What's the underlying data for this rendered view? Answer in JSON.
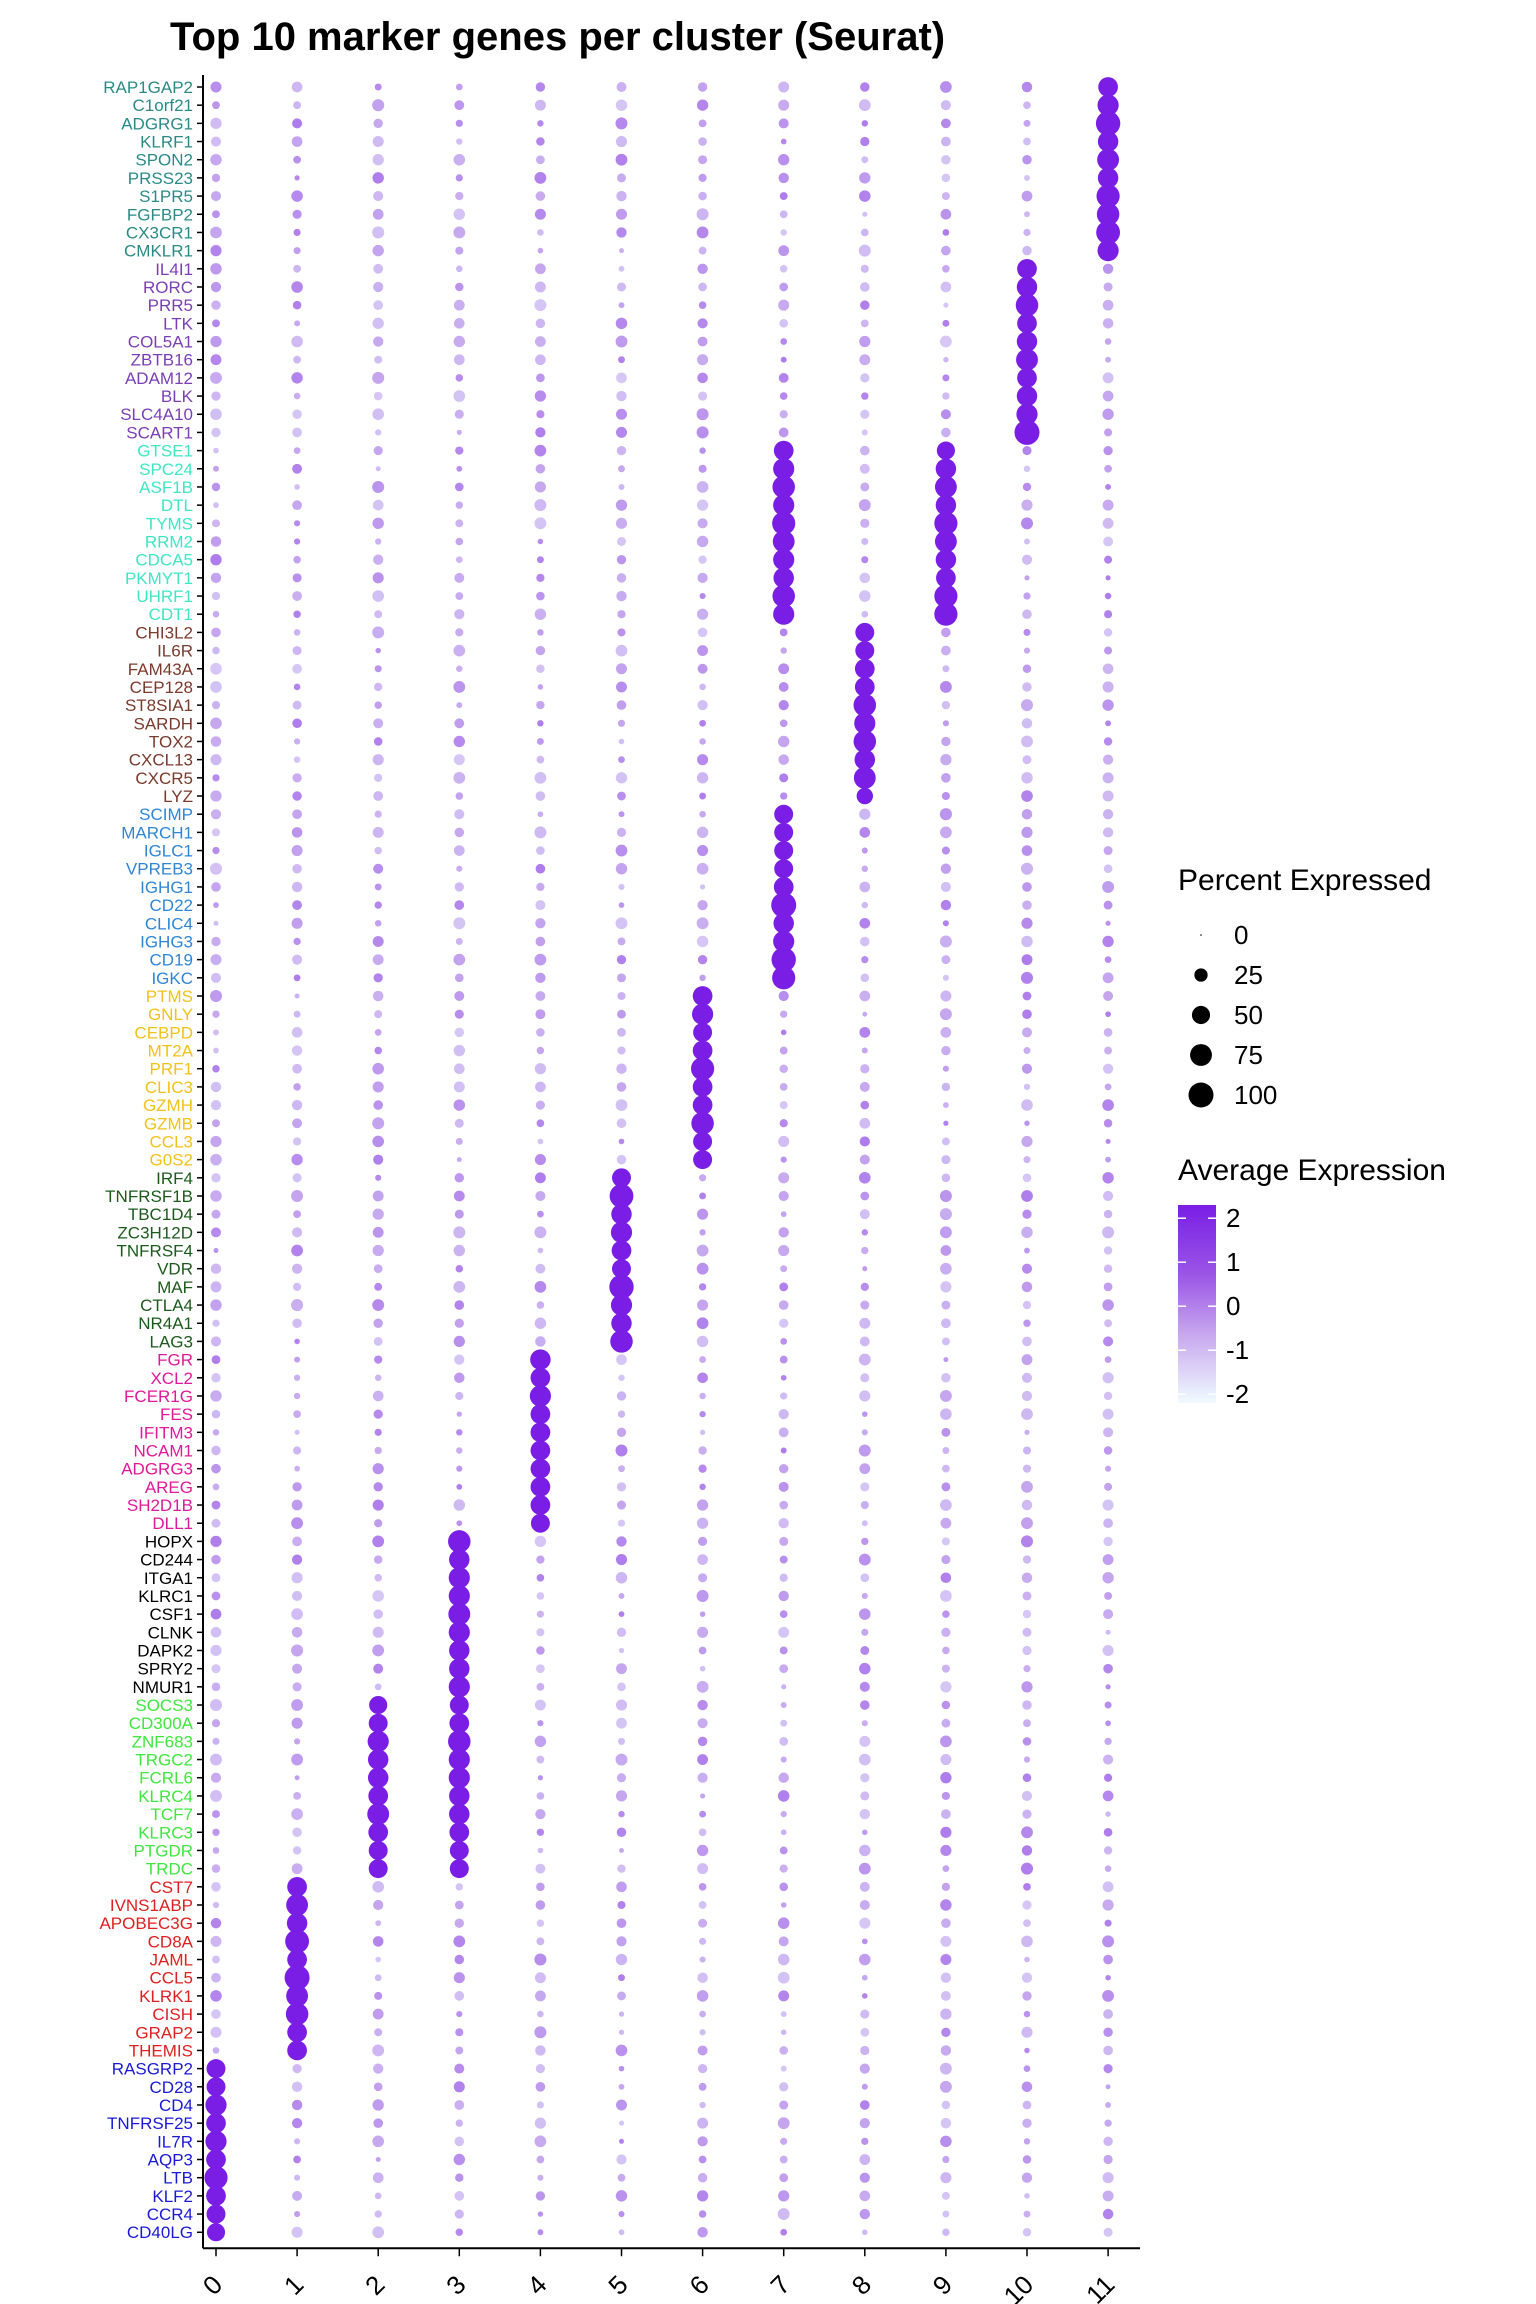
{
  "chart_data": {
    "type": "dot",
    "title": "Top 10 marker genes per cluster (Seurat)",
    "xlabel": "",
    "ylabel": "",
    "clusters": [
      "0",
      "1",
      "2",
      "3",
      "4",
      "5",
      "6",
      "7",
      "8",
      "9",
      "10",
      "11"
    ],
    "gene_groups": [
      {
        "cluster": "11",
        "color": "#2a8b86",
        "genes": [
          "RAP1GAP2",
          "C1orf21",
          "ADGRG1",
          "KLRF1",
          "SPON2",
          "PRSS23",
          "S1PR5",
          "FGFBP2",
          "CX3CR1",
          "CMKLR1"
        ],
        "strong": [
          [
            11,
            60
          ],
          [
            11,
            70
          ],
          [
            11,
            95
          ],
          [
            11,
            65
          ],
          [
            11,
            75
          ],
          [
            11,
            65
          ],
          [
            11,
            85
          ],
          [
            11,
            80
          ],
          [
            11,
            90
          ],
          [
            11,
            70
          ]
        ]
      },
      {
        "cluster": "10",
        "color": "#7b3fb5",
        "genes": [
          "IL4I1",
          "RORC",
          "PRR5",
          "LTK",
          "COL5A1",
          "ZBTB16",
          "ADAM12",
          "BLK",
          "SLC4A10",
          "SCART1"
        ],
        "strong": [
          [
            10,
            60
          ],
          [
            10,
            65
          ],
          [
            10,
            80
          ],
          [
            10,
            60
          ],
          [
            10,
            65
          ],
          [
            10,
            75
          ],
          [
            10,
            60
          ],
          [
            10,
            65
          ],
          [
            10,
            70
          ],
          [
            10,
            100
          ]
        ]
      },
      {
        "cluster": "9",
        "color": "#3ee6c4",
        "genes": [
          "GTSE1",
          "SPC24",
          "ASF1B",
          "DTL",
          "TYMS",
          "RRM2",
          "CDCA5",
          "PKMYT1",
          "UHRF1",
          "CDT1"
        ],
        "strong": [
          [
            7,
            60
          ],
          [
            7,
            70
          ],
          [
            7,
            80
          ],
          [
            7,
            70
          ],
          [
            7,
            85
          ],
          [
            7,
            75
          ],
          [
            7,
            70
          ],
          [
            7,
            65
          ],
          [
            7,
            80
          ],
          [
            7,
            70
          ],
          [
            9,
            50
          ],
          [
            9,
            65
          ],
          [
            9,
            75
          ],
          [
            9,
            65
          ],
          [
            9,
            85
          ],
          [
            9,
            75
          ],
          [
            9,
            65
          ],
          [
            9,
            60
          ],
          [
            9,
            85
          ],
          [
            9,
            85
          ]
        ]
      },
      {
        "cluster": "8",
        "color": "#7a3a2c",
        "genes": [
          "CHI3L2",
          "IL6R",
          "FAM43A",
          "CEP128",
          "ST8SIA1",
          "SARDH",
          "TOX2",
          "CXCL13",
          "CXCR5",
          "LYZ"
        ],
        "strong": [
          [
            8,
            55
          ],
          [
            8,
            55
          ],
          [
            8,
            60
          ],
          [
            8,
            60
          ],
          [
            8,
            80
          ],
          [
            8,
            70
          ],
          [
            8,
            80
          ],
          [
            8,
            65
          ],
          [
            8,
            75
          ],
          [
            8,
            40
          ]
        ]
      },
      {
        "cluster": "7",
        "color": "#2f86d6",
        "genes": [
          "SCIMP",
          "MARCH1",
          "IGLC1",
          "VPREB3",
          "IGHG1",
          "CD22",
          "CLIC4",
          "IGHG3",
          "CD19",
          "IGKC"
        ],
        "strong": [
          [
            7,
            55
          ],
          [
            7,
            55
          ],
          [
            7,
            55
          ],
          [
            7,
            55
          ],
          [
            7,
            60
          ],
          [
            7,
            100
          ],
          [
            7,
            65
          ],
          [
            7,
            70
          ],
          [
            7,
            95
          ],
          [
            7,
            85
          ]
        ]
      },
      {
        "cluster": "6",
        "color": "#f2c21b",
        "genes": [
          "PTMS",
          "GNLY",
          "CEBPD",
          "MT2A",
          "PRF1",
          "CLIC3",
          "GZMH",
          "GZMB",
          "CCL3",
          "G0S2"
        ],
        "strong": [
          [
            6,
            60
          ],
          [
            6,
            70
          ],
          [
            6,
            55
          ],
          [
            6,
            60
          ],
          [
            6,
            85
          ],
          [
            6,
            60
          ],
          [
            6,
            60
          ],
          [
            6,
            80
          ],
          [
            6,
            55
          ],
          [
            6,
            55
          ]
        ]
      },
      {
        "cluster": "5",
        "color": "#1c5a1c",
        "genes": [
          "IRF4",
          "TNFRSF1B",
          "TBC1D4",
          "ZC3H12D",
          "TNFRSF4",
          "VDR",
          "MAF",
          "CTLA4",
          "NR4A1",
          "LAG3"
        ],
        "strong": [
          [
            5,
            55
          ],
          [
            5,
            90
          ],
          [
            5,
            65
          ],
          [
            5,
            70
          ],
          [
            5,
            60
          ],
          [
            5,
            55
          ],
          [
            5,
            95
          ],
          [
            5,
            70
          ],
          [
            5,
            65
          ],
          [
            5,
            80
          ]
        ]
      },
      {
        "cluster": "4",
        "color": "#e0199a",
        "genes": [
          "FGR",
          "XCL2",
          "FCER1G",
          "FES",
          "IFITM3",
          "NCAM1",
          "ADGRG3",
          "AREG",
          "SH2D1B",
          "DLL1"
        ],
        "strong": [
          [
            4,
            65
          ],
          [
            4,
            60
          ],
          [
            4,
            70
          ],
          [
            4,
            60
          ],
          [
            4,
            60
          ],
          [
            4,
            60
          ],
          [
            4,
            60
          ],
          [
            4,
            60
          ],
          [
            4,
            60
          ],
          [
            4,
            55
          ]
        ]
      },
      {
        "cluster": "3",
        "color": "#000000",
        "genes": [
          "HOPX",
          "CD244",
          "ITGA1",
          "KLRC1",
          "CSF1",
          "CLNK",
          "DAPK2",
          "SPRY2",
          "NMUR1"
        ],
        "strong": [
          [
            3,
            80
          ],
          [
            3,
            65
          ],
          [
            3,
            70
          ],
          [
            3,
            70
          ],
          [
            3,
            75
          ],
          [
            3,
            70
          ],
          [
            3,
            65
          ],
          [
            3,
            65
          ],
          [
            3,
            70
          ]
        ]
      },
      {
        "cluster": "2",
        "color": "#3fe63f",
        "genes": [
          "SOCS3",
          "CD300A",
          "ZNF683",
          "TRGC2",
          "FCRL6",
          "KLRC4",
          "TCF7",
          "KLRC3",
          "PTGDR",
          "TRDC"
        ],
        "strong": [
          [
            3,
            55
          ],
          [
            3,
            60
          ],
          [
            3,
            80
          ],
          [
            3,
            70
          ],
          [
            3,
            70
          ],
          [
            3,
            65
          ],
          [
            3,
            65
          ],
          [
            3,
            60
          ],
          [
            3,
            55
          ],
          [
            3,
            55
          ],
          [
            2,
            50
          ],
          [
            2,
            55
          ],
          [
            2,
            70
          ],
          [
            2,
            65
          ],
          [
            2,
            65
          ],
          [
            2,
            60
          ],
          [
            2,
            75
          ],
          [
            2,
            60
          ],
          [
            2,
            55
          ],
          [
            2,
            55
          ]
        ]
      },
      {
        "cluster": "1",
        "color": "#e02020",
        "genes": [
          "CST7",
          "IVNS1ABP",
          "APOBEC3G",
          "CD8A",
          "JAML",
          "CCL5",
          "KLRK1",
          "CISH",
          "GRAP2",
          "THEMIS"
        ],
        "strong": [
          [
            1,
            60
          ],
          [
            1,
            75
          ],
          [
            1,
            65
          ],
          [
            1,
            90
          ],
          [
            1,
            60
          ],
          [
            1,
            100
          ],
          [
            1,
            75
          ],
          [
            1,
            80
          ],
          [
            1,
            60
          ],
          [
            1,
            60
          ]
        ]
      },
      {
        "cluster": "0",
        "color": "#1a1ad6",
        "genes": [
          "RASGRP2",
          "CD28",
          "CD4",
          "TNFRSF25",
          "IL7R",
          "AQP3",
          "LTB",
          "KLF2",
          "CCR4",
          "CD40LG"
        ],
        "strong": [
          [
            0,
            55
          ],
          [
            0,
            55
          ],
          [
            0,
            70
          ],
          [
            0,
            60
          ],
          [
            0,
            70
          ],
          [
            0,
            60
          ],
          [
            0,
            85
          ],
          [
            0,
            60
          ],
          [
            0,
            55
          ],
          [
            0,
            50
          ]
        ]
      }
    ],
    "size_legend": {
      "title": "Percent Expressed",
      "labels": [
        "0",
        "25",
        "50",
        "75",
        "100"
      ],
      "values": [
        0,
        25,
        50,
        75,
        100
      ]
    },
    "color_legend": {
      "title": "Average Expression",
      "labels": [
        "2",
        "1",
        "0",
        "-1",
        "-2"
      ],
      "values": [
        2,
        1,
        0,
        -1,
        -2
      ],
      "low_color": "#f0fbff",
      "high_color": "#7a1ee6"
    },
    "grid": false,
    "legend_position": "right"
  }
}
